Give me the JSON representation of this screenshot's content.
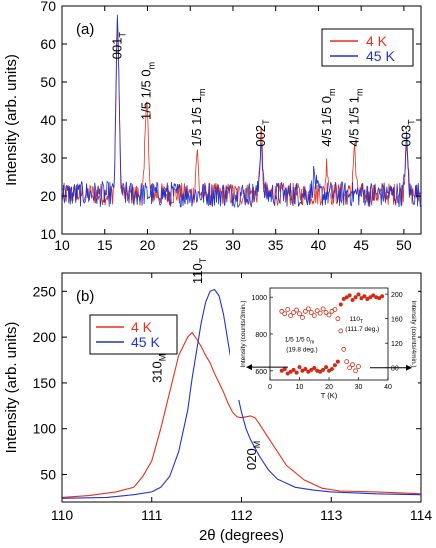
{
  "colors": {
    "red": "#e8301c",
    "blue": "#2233cc",
    "axis": "#000000",
    "inset_red": "#d42a14"
  },
  "chart_data": [
    {
      "id": "a",
      "type": "line",
      "panel_label": "(a)",
      "xlabel": "",
      "ylabel": "Intensity (arb. units)",
      "xlim": [
        10,
        52
      ],
      "ylim": [
        10,
        70
      ],
      "xticks": [
        10,
        15,
        20,
        25,
        30,
        35,
        40,
        45,
        50
      ],
      "yticks": [
        10,
        20,
        30,
        40,
        50,
        60,
        70
      ],
      "grid": false,
      "legend_position": "top-right",
      "series": [
        {
          "name": "4 K",
          "color": "#e8301c",
          "baseline": 20.5,
          "noise": 3.0,
          "peaks": [
            {
              "x": 16.5,
              "h": 44,
              "w": 0.25
            },
            {
              "x": 19.9,
              "h": 26,
              "w": 0.25
            },
            {
              "x": 25.8,
              "h": 11,
              "w": 0.2
            },
            {
              "x": 33.3,
              "h": 15,
              "w": 0.22
            },
            {
              "x": 41.0,
              "h": 8,
              "w": 0.22
            },
            {
              "x": 44.2,
              "h": 12,
              "w": 0.22
            },
            {
              "x": 50.3,
              "h": 15,
              "w": 0.22
            }
          ]
        },
        {
          "name": "45 K",
          "color": "#2233cc",
          "baseline": 20.5,
          "noise": 3.4,
          "peaks": [
            {
              "x": 16.5,
              "h": 46,
              "w": 0.25
            },
            {
              "x": 33.3,
              "h": 14,
              "w": 0.22
            },
            {
              "x": 39.5,
              "h": 5,
              "w": 0.25
            },
            {
              "x": 50.3,
              "h": 14,
              "w": 0.22
            }
          ]
        }
      ],
      "annotations": [
        {
          "base": "001",
          "sub": "T",
          "x": 16.5,
          "y": 56
        },
        {
          "base": "1/5 1/5 0",
          "sub": "m",
          "x": 19.9,
          "y": 40
        },
        {
          "base": "1/5 1/5 1",
          "sub": "m",
          "x": 25.8,
          "y": 33
        },
        {
          "base": "002",
          "sub": "T",
          "x": 33.3,
          "y": 33
        },
        {
          "base": "4/5 1/5 0",
          "sub": "m",
          "x": 41.0,
          "y": 33
        },
        {
          "base": "4/5 1/5 1",
          "sub": "m",
          "x": 44.2,
          "y": 33
        },
        {
          "base": "003",
          "sub": "T",
          "x": 50.3,
          "y": 33
        }
      ]
    },
    {
      "id": "b",
      "type": "line",
      "panel_label": "(b)",
      "xlabel": "2θ (degrees)",
      "ylabel": "Intensity (arb. units)",
      "xlim": [
        110,
        114
      ],
      "ylim": [
        20,
        270
      ],
      "xticks": [
        110,
        111,
        112,
        113,
        114
      ],
      "yticks": [
        50,
        100,
        150,
        200,
        250
      ],
      "grid": false,
      "legend_position": "top-left",
      "series": [
        {
          "name": "4 K",
          "color": "#e8301c",
          "x": [
            110.0,
            110.3,
            110.6,
            110.8,
            110.9,
            111.0,
            111.1,
            111.2,
            111.3,
            111.4,
            111.45,
            111.5,
            111.55,
            111.6,
            111.65,
            111.7,
            111.75,
            111.8,
            111.85,
            111.9,
            111.95,
            112.0,
            112.05,
            112.1,
            112.15,
            112.2,
            112.3,
            112.4,
            112.5,
            112.7,
            112.9,
            113.1,
            113.5,
            114.0
          ],
          "y": [
            25,
            27,
            31,
            36,
            48,
            65,
            100,
            140,
            180,
            200,
            205,
            198,
            190,
            180,
            172,
            160,
            150,
            140,
            128,
            118,
            113,
            112,
            113,
            114,
            112,
            105,
            90,
            75,
            60,
            44,
            35,
            32,
            31,
            29
          ]
        },
        {
          "name": "45 K",
          "color": "#2233cc",
          "x": [
            110.0,
            110.5,
            110.8,
            111.0,
            111.1,
            111.2,
            111.3,
            111.4,
            111.45,
            111.5,
            111.55,
            111.6,
            111.65,
            111.7,
            111.75,
            111.8,
            111.85,
            111.9,
            111.95,
            112.0,
            112.05,
            112.1,
            112.2,
            112.3,
            112.4,
            112.6,
            112.8,
            113.0,
            113.5,
            114.0
          ],
          "y": [
            24,
            25,
            28,
            31,
            36,
            48,
            75,
            120,
            155,
            185,
            215,
            238,
            250,
            252,
            245,
            225,
            195,
            165,
            140,
            118,
            100,
            88,
            70,
            55,
            45,
            36,
            33,
            31,
            29,
            28
          ]
        }
      ],
      "annotations": [
        {
          "base": "110",
          "sub": "T",
          "x": 111.65,
          "y": 258
        },
        {
          "base": "310",
          "sub": "M",
          "x": 111.2,
          "y": 150
        },
        {
          "base": "020",
          "sub": "M",
          "x": 112.25,
          "y": 55
        }
      ]
    },
    {
      "id": "inset",
      "type": "scatter",
      "xlabel": "T (K)",
      "ylabel_left": "Intensity (counts/3min.)",
      "ylabel_right": "Intensity (counts/4min.)",
      "xlim": [
        0,
        40
      ],
      "ylim_left": [
        550,
        1050
      ],
      "ylim_right": [
        60,
        210
      ],
      "xticks": [
        0,
        10,
        20,
        30,
        40
      ],
      "yticks_left": [
        600,
        800,
        1000
      ],
      "yticks_right": [
        80,
        120,
        160,
        200
      ],
      "annotations": [
        {
          "line1": "1/5 1/5 0",
          "sub": "m",
          "line2": "(19.8 deg.)"
        },
        {
          "line1": "110",
          "sub": "T",
          "line2": "(111.7 deg.)"
        }
      ],
      "series": [
        {
          "name": "1/5 1/5 0m",
          "axis": "left",
          "marker": "filled",
          "x": [
            4,
            5,
            6,
            7,
            8,
            9,
            10,
            11,
            12,
            13,
            14,
            15,
            16,
            17,
            18,
            19,
            20,
            21,
            22,
            23,
            24,
            25,
            26,
            27,
            28,
            29,
            30,
            31,
            32,
            33,
            34,
            35,
            36,
            37,
            38
          ],
          "y": [
            600,
            610,
            585,
            595,
            605,
            590,
            620,
            600,
            610,
            595,
            605,
            615,
            600,
            595,
            605,
            620,
            600,
            610,
            630,
            650,
            960,
            990,
            1000,
            1010,
            985,
            1000,
            1015,
            995,
            1005,
            990,
            1000,
            1010,
            1000,
            995,
            1005
          ]
        },
        {
          "name": "110T",
          "axis": "right",
          "marker": "open",
          "x": [
            4,
            5,
            6,
            7,
            8,
            9,
            10,
            11,
            12,
            13,
            14,
            15,
            16,
            17,
            18,
            19,
            20,
            21,
            22,
            23,
            24,
            25,
            26,
            27,
            28,
            29,
            30
          ],
          "y": [
            172,
            168,
            175,
            165,
            170,
            174,
            168,
            162,
            172,
            176,
            170,
            165,
            173,
            169,
            176,
            170,
            166,
            172,
            175,
            160,
            140,
            110,
            90,
            80,
            85,
            75,
            82
          ]
        }
      ]
    }
  ]
}
